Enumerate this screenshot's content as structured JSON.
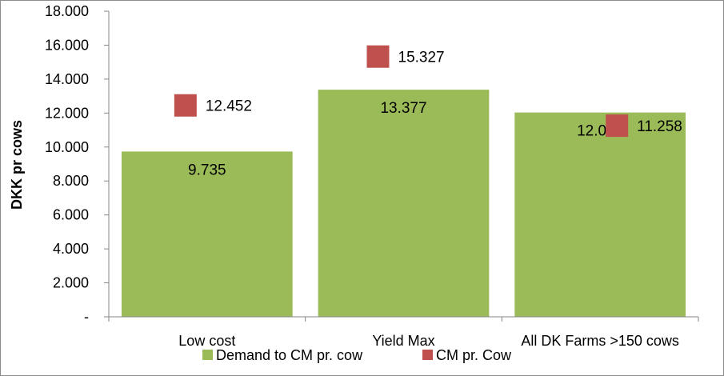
{
  "chart_data": {
    "type": "bar",
    "categories": [
      "Low cost",
      "Yield Max",
      "All DK Farms >150 cows"
    ],
    "series": [
      {
        "name": "Demand to CM pr. cow",
        "render": "bar",
        "color": "#9bbb59",
        "values": [
          9735,
          13377,
          12033
        ],
        "value_labels": [
          "9.735",
          "13.377",
          "12.033"
        ]
      },
      {
        "name": "CM pr. Cow",
        "render": "marker",
        "color": "#c0504d",
        "values": [
          12452,
          15327,
          11258
        ],
        "value_labels": [
          "12.452",
          "15.327",
          "11.258"
        ]
      }
    ],
    "ylabel": "DKK pr cows",
    "xlabel": "",
    "ylim": [
      0,
      18000
    ],
    "yticks": [
      0,
      2000,
      4000,
      6000,
      8000,
      10000,
      12000,
      14000,
      16000,
      18000
    ],
    "ytick_labels": [
      "-",
      "2.000",
      "4.000",
      "6.000",
      "8.000",
      "10.000",
      "12.000",
      "14.000",
      "16.000",
      "18.000"
    ],
    "grid": false,
    "legend_position": "bottom"
  }
}
